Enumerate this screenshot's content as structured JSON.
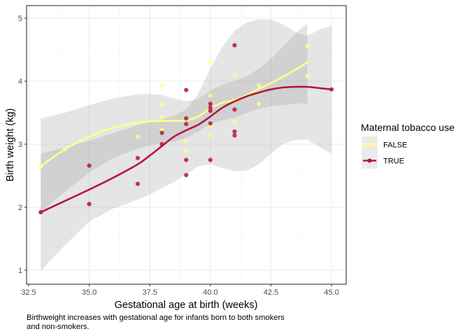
{
  "chart_data": {
    "type": "scatter",
    "title": "",
    "xlabel": "Gestational age at birth (weeks)",
    "ylabel": "Birth weight (kg)",
    "xlim": [
      32.4,
      45.5
    ],
    "ylim": [
      0.8,
      5.2
    ],
    "x_ticks": [
      32.5,
      35.0,
      37.5,
      40.0,
      42.5,
      45.0
    ],
    "x_tick_labels": [
      "32.5",
      "35.0",
      "37.5",
      "40.0",
      "42.5",
      "45.0"
    ],
    "y_ticks": [
      1,
      2,
      3,
      4,
      5
    ],
    "y_tick_labels": [
      "1",
      "2",
      "3",
      "4",
      "5"
    ],
    "grid": true,
    "legend": {
      "title": "Maternal tobacco use",
      "placement": "right",
      "entries": [
        "FALSE",
        "TRUE"
      ]
    },
    "caption": "Birthweight increases with gestational age for infants born to both smokers and non-smokers.",
    "series": [
      {
        "name": "FALSE",
        "color": "#FFFF8C",
        "points": [
          [
            33,
            2.65
          ],
          [
            34,
            2.92
          ],
          [
            37,
            3.12
          ],
          [
            38,
            3.93
          ],
          [
            38,
            3.63
          ],
          [
            38,
            3.42
          ],
          [
            38,
            3.23
          ],
          [
            39,
            3.04
          ],
          [
            39,
            2.9
          ],
          [
            40,
            4.31
          ],
          [
            40,
            3.77
          ],
          [
            40,
            3.29
          ],
          [
            40,
            3.15
          ],
          [
            41,
            4.09
          ],
          [
            41,
            3.35
          ],
          [
            42,
            3.93
          ],
          [
            42,
            3.64
          ],
          [
            44,
            4.56
          ],
          [
            44,
            4.08
          ]
        ],
        "smooth": [
          [
            33,
            2.65
          ],
          [
            34,
            2.92
          ],
          [
            35,
            3.12
          ],
          [
            36,
            3.26
          ],
          [
            37,
            3.34
          ],
          [
            37.5,
            3.36
          ],
          [
            38,
            3.37
          ],
          [
            38.5,
            3.37
          ],
          [
            39,
            3.38
          ],
          [
            39.5,
            3.44
          ],
          [
            40,
            3.57
          ],
          [
            40.5,
            3.66
          ],
          [
            41,
            3.7
          ],
          [
            41.5,
            3.78
          ],
          [
            42,
            3.88
          ],
          [
            42.5,
            3.97
          ],
          [
            43,
            4.07
          ],
          [
            43.5,
            4.18
          ],
          [
            44,
            4.3
          ]
        ],
        "ci_upper": [
          [
            33,
            3.41
          ],
          [
            34,
            3.5
          ],
          [
            35,
            3.62
          ],
          [
            36,
            3.73
          ],
          [
            37,
            3.79
          ],
          [
            37.5,
            3.8
          ],
          [
            38,
            3.78
          ],
          [
            38.5,
            3.73
          ],
          [
            39,
            3.68
          ],
          [
            39.5,
            3.72
          ],
          [
            40,
            3.85
          ],
          [
            40.5,
            3.95
          ],
          [
            41,
            4.0
          ],
          [
            41.5,
            4.08
          ],
          [
            42,
            4.2
          ],
          [
            42.5,
            4.35
          ],
          [
            43,
            4.55
          ],
          [
            43.5,
            4.75
          ],
          [
            44,
            4.92
          ]
        ],
        "ci_lower": [
          [
            33,
            1.93
          ],
          [
            34,
            2.25
          ],
          [
            35,
            2.55
          ],
          [
            36,
            2.78
          ],
          [
            37,
            2.93
          ],
          [
            37.5,
            2.98
          ],
          [
            38,
            3.02
          ],
          [
            38.5,
            3.04
          ],
          [
            39,
            3.1
          ],
          [
            39.5,
            3.2
          ],
          [
            40,
            3.32
          ],
          [
            40.5,
            3.38
          ],
          [
            41,
            3.42
          ],
          [
            41.5,
            3.5
          ],
          [
            42,
            3.56
          ],
          [
            42.5,
            3.6
          ],
          [
            43,
            3.62
          ],
          [
            43.5,
            3.64
          ],
          [
            44,
            3.65
          ]
        ]
      },
      {
        "name": "TRUE",
        "color": "#B2183F",
        "points": [
          [
            33,
            1.92
          ],
          [
            35,
            2.66
          ],
          [
            35,
            2.05
          ],
          [
            37,
            2.78
          ],
          [
            37,
            2.37
          ],
          [
            38,
            3.18
          ],
          [
            38,
            3.0
          ],
          [
            39,
            3.86
          ],
          [
            39,
            3.41
          ],
          [
            39,
            3.32
          ],
          [
            39,
            2.75
          ],
          [
            39,
            2.51
          ],
          [
            40,
            3.64
          ],
          [
            40,
            3.58
          ],
          [
            40,
            3.53
          ],
          [
            40,
            3.33
          ],
          [
            40,
            2.75
          ],
          [
            41,
            4.57
          ],
          [
            41,
            3.55
          ],
          [
            41,
            3.2
          ],
          [
            41,
            3.14
          ],
          [
            45,
            3.87
          ]
        ],
        "smooth": [
          [
            33,
            1.92
          ],
          [
            34,
            2.1
          ],
          [
            35,
            2.28
          ],
          [
            36,
            2.47
          ],
          [
            37,
            2.68
          ],
          [
            37.5,
            2.82
          ],
          [
            38,
            2.97
          ],
          [
            38.5,
            3.12
          ],
          [
            39,
            3.22
          ],
          [
            39.5,
            3.31
          ],
          [
            40,
            3.44
          ],
          [
            40.5,
            3.58
          ],
          [
            41,
            3.68
          ],
          [
            41.5,
            3.76
          ],
          [
            42,
            3.82
          ],
          [
            42.5,
            3.87
          ],
          [
            43,
            3.9
          ],
          [
            43.5,
            3.91
          ],
          [
            44,
            3.91
          ],
          [
            44.5,
            3.89
          ],
          [
            45,
            3.87
          ]
        ],
        "ci_upper": [
          [
            33,
            2.85
          ],
          [
            34,
            2.95
          ],
          [
            35,
            3.05
          ],
          [
            36,
            3.18
          ],
          [
            37,
            3.3
          ],
          [
            37.5,
            3.36
          ],
          [
            38,
            3.4
          ],
          [
            38.5,
            3.45
          ],
          [
            39,
            3.55
          ],
          [
            39.5,
            3.8
          ],
          [
            40,
            4.2
          ],
          [
            40.5,
            4.55
          ],
          [
            41,
            4.8
          ],
          [
            41.5,
            4.93
          ],
          [
            42,
            4.98
          ],
          [
            42.5,
            4.98
          ],
          [
            43,
            4.9
          ],
          [
            43.5,
            4.78
          ],
          [
            44,
            4.72
          ],
          [
            44.5,
            4.82
          ],
          [
            45,
            4.88
          ]
        ],
        "ci_lower": [
          [
            33,
            0.99
          ],
          [
            34,
            1.4
          ],
          [
            35,
            1.77
          ],
          [
            36,
            1.98
          ],
          [
            37,
            2.12
          ],
          [
            37.5,
            2.2
          ],
          [
            38,
            2.3
          ],
          [
            38.5,
            2.4
          ],
          [
            39,
            2.52
          ],
          [
            39.5,
            2.65
          ],
          [
            40,
            2.68
          ],
          [
            40.5,
            2.62
          ],
          [
            41,
            2.57
          ],
          [
            41.5,
            2.58
          ],
          [
            42,
            2.68
          ],
          [
            42.5,
            2.85
          ],
          [
            43,
            3.0
          ],
          [
            43.5,
            3.07
          ],
          [
            44,
            3.07
          ],
          [
            44.5,
            2.96
          ],
          [
            45,
            2.85
          ]
        ]
      }
    ]
  }
}
